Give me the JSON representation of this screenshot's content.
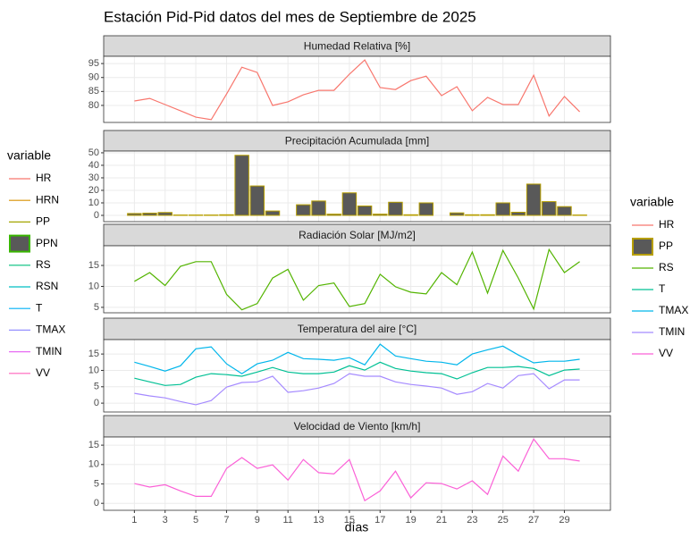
{
  "title": "Estación Pid-Pid datos del mes de Septiembre de 2025",
  "x_label": "días",
  "legend_left": {
    "title": "variable",
    "items": [
      {
        "name": "HR",
        "color": "#F8766D"
      },
      {
        "name": "HRN",
        "color": "#D89000"
      },
      {
        "name": "PP",
        "color": "#A3A500"
      },
      {
        "name": "PPN",
        "color": "#39B600",
        "fill": "#595959"
      },
      {
        "name": "RS",
        "color": "#00BF7D"
      },
      {
        "name": "RSN",
        "color": "#00BFC4"
      },
      {
        "name": "T",
        "color": "#00B0F6"
      },
      {
        "name": "TMAX",
        "color": "#9590FF"
      },
      {
        "name": "TMIN",
        "color": "#E76BF3"
      },
      {
        "name": "VV",
        "color": "#FF62BC"
      }
    ]
  },
  "legend_right_title": "variable",
  "chart_data": [
    {
      "type": "line",
      "title": "Humedad Relativa [%]",
      "x": [
        1,
        2,
        3,
        4,
        5,
        6,
        7,
        8,
        9,
        10,
        11,
        12,
        13,
        14,
        15,
        16,
        17,
        18,
        19,
        20,
        21,
        22,
        23,
        24,
        25,
        26,
        27,
        28,
        29,
        30
      ],
      "xlim": [
        -1,
        32
      ],
      "xticks": [
        1,
        3,
        5,
        7,
        9,
        11,
        13,
        15,
        17,
        19,
        21,
        23,
        25,
        27,
        29
      ],
      "ylim": [
        73.9,
        97.6
      ],
      "yticks": [
        80,
        85,
        90,
        95
      ],
      "series": [
        {
          "name": "HR",
          "color": "#F8766D",
          "values": [
            81.6,
            82.5,
            80.3,
            78.1,
            75.8,
            74.9,
            84.1,
            93.7,
            91.8,
            80,
            81.3,
            83.8,
            85.4,
            85.4,
            91.2,
            96.3,
            86.4,
            85.7,
            88.9,
            90.5,
            83.5,
            86.7,
            78.1,
            82.9,
            80.3,
            80.3,
            90.8,
            76.2,
            83.2,
            77.7
          ]
        }
      ]
    },
    {
      "type": "bar",
      "title": "Precipitación Acumulada [mm]",
      "x": [
        1,
        2,
        3,
        4,
        5,
        6,
        7,
        8,
        9,
        10,
        11,
        12,
        13,
        14,
        15,
        16,
        17,
        18,
        19,
        20,
        21,
        22,
        23,
        24,
        25,
        26,
        27,
        28,
        29,
        30
      ],
      "xlim": [
        -1,
        32
      ],
      "xticks": [
        1,
        3,
        5,
        7,
        9,
        11,
        13,
        15,
        17,
        19,
        21,
        23,
        25,
        27,
        29
      ],
      "ylim": [
        -5,
        51.4
      ],
      "yticks": [
        0,
        10,
        20,
        30,
        40,
        50
      ],
      "series": [
        {
          "name": "PP",
          "color": "#B79F00",
          "fill": "#595959",
          "values": [
            1.5,
            1.8,
            2.3,
            0.3,
            0.3,
            0.3,
            0.5,
            48,
            23.5,
            3.5,
            0,
            8.5,
            11.5,
            1,
            18,
            7.5,
            1,
            10.5,
            0.5,
            10,
            0,
            2,
            0.5,
            0.5,
            10,
            2.5,
            25,
            11,
            7,
            0.3
          ]
        }
      ]
    },
    {
      "type": "line",
      "title": "Radiación Solar [MJ/m2]",
      "x": [
        1,
        2,
        3,
        4,
        5,
        6,
        7,
        8,
        9,
        10,
        11,
        12,
        13,
        14,
        15,
        16,
        17,
        18,
        19,
        20,
        21,
        22,
        23,
        24,
        25,
        26,
        27,
        28,
        29,
        30
      ],
      "xlim": [
        -1,
        32
      ],
      "xticks": [
        1,
        3,
        5,
        7,
        9,
        11,
        13,
        15,
        17,
        19,
        21,
        23,
        25,
        27,
        29
      ],
      "ylim": [
        3.7,
        19.7
      ],
      "yticks": [
        5,
        10,
        15
      ],
      "series": [
        {
          "name": "RS",
          "color": "#53B400",
          "values": [
            11.2,
            13.3,
            10.2,
            14.8,
            15.9,
            15.9,
            8.1,
            4.4,
            5.9,
            12,
            14.1,
            6.7,
            10.2,
            10.8,
            5.2,
            5.9,
            12.9,
            9.9,
            8.6,
            8.2,
            13.3,
            10.4,
            18.2,
            8.4,
            18.6,
            12,
            4.6,
            18.8,
            13.3,
            15.9
          ]
        }
      ]
    },
    {
      "type": "line",
      "title": "Temperatura del aire [°C]",
      "x": [
        1,
        2,
        3,
        4,
        5,
        6,
        7,
        8,
        9,
        10,
        11,
        12,
        13,
        14,
        15,
        16,
        17,
        18,
        19,
        20,
        21,
        22,
        23,
        24,
        25,
        26,
        27,
        28,
        29,
        30
      ],
      "xlim": [
        -1,
        32
      ],
      "xticks": [
        1,
        3,
        5,
        7,
        9,
        11,
        13,
        15,
        17,
        19,
        21,
        23,
        25,
        27,
        29
      ],
      "ylim": [
        -2.7,
        19.4
      ],
      "yticks": [
        0,
        5,
        10,
        15
      ],
      "series": [
        {
          "name": "T",
          "color": "#00C094",
          "values": [
            7.6,
            6.5,
            5.4,
            5.7,
            7.9,
            9,
            8.7,
            8.2,
            9.5,
            10.9,
            9.5,
            9,
            9,
            9.5,
            11.4,
            10.1,
            12.5,
            10.6,
            9.8,
            9.3,
            9,
            7.4,
            9.3,
            10.9,
            10.9,
            11.2,
            10.6,
            8.4,
            10.1,
            10.4
          ]
        },
        {
          "name": "TMAX",
          "color": "#00B6EB",
          "values": [
            12.5,
            11.2,
            9.8,
            11.4,
            16.6,
            17.2,
            12,
            9,
            12,
            13.1,
            15.5,
            13.6,
            13.4,
            13.1,
            13.9,
            11.7,
            18,
            14.4,
            13.6,
            12.8,
            12.5,
            11.7,
            15,
            16.3,
            17.4,
            14.7,
            12.3,
            12.8,
            12.8,
            13.4
          ]
        },
        {
          "name": "TMIN",
          "color": "#A58AFF",
          "values": [
            3,
            2.2,
            1.6,
            0.5,
            -0.5,
            0.8,
            4.9,
            6.3,
            6.5,
            8.2,
            3.3,
            3.8,
            4.6,
            6,
            9,
            8.2,
            8.2,
            6.5,
            5.7,
            5.2,
            4.6,
            2.7,
            3.5,
            6,
            4.6,
            8.4,
            9,
            4.4,
            7.1,
            7.1
          ]
        }
      ]
    },
    {
      "type": "line",
      "title": "Velocidad de Viento [km/h]",
      "x": [
        1,
        2,
        3,
        4,
        5,
        6,
        7,
        8,
        9,
        10,
        11,
        12,
        13,
        14,
        15,
        16,
        17,
        18,
        19,
        20,
        21,
        22,
        23,
        24,
        25,
        26,
        27,
        28,
        29,
        30
      ],
      "xlim": [
        -1,
        32
      ],
      "xticks": [
        1,
        3,
        5,
        7,
        9,
        11,
        13,
        15,
        17,
        19,
        21,
        23,
        25,
        27,
        29
      ],
      "ylim": [
        -1.8,
        17.1
      ],
      "yticks": [
        0,
        5,
        10,
        15
      ],
      "series": [
        {
          "name": "VV",
          "color": "#FB61D7",
          "values": [
            5.1,
            4.2,
            4.8,
            3.2,
            1.8,
            1.8,
            9,
            11.8,
            9,
            9.9,
            6,
            11.3,
            7.9,
            7.6,
            11.3,
            0.7,
            3.2,
            8.3,
            1.4,
            5.3,
            5.1,
            3.7,
            5.8,
            2.3,
            12.2,
            8.3,
            16.6,
            11.5,
            11.5,
            10.9
          ]
        }
      ]
    }
  ]
}
